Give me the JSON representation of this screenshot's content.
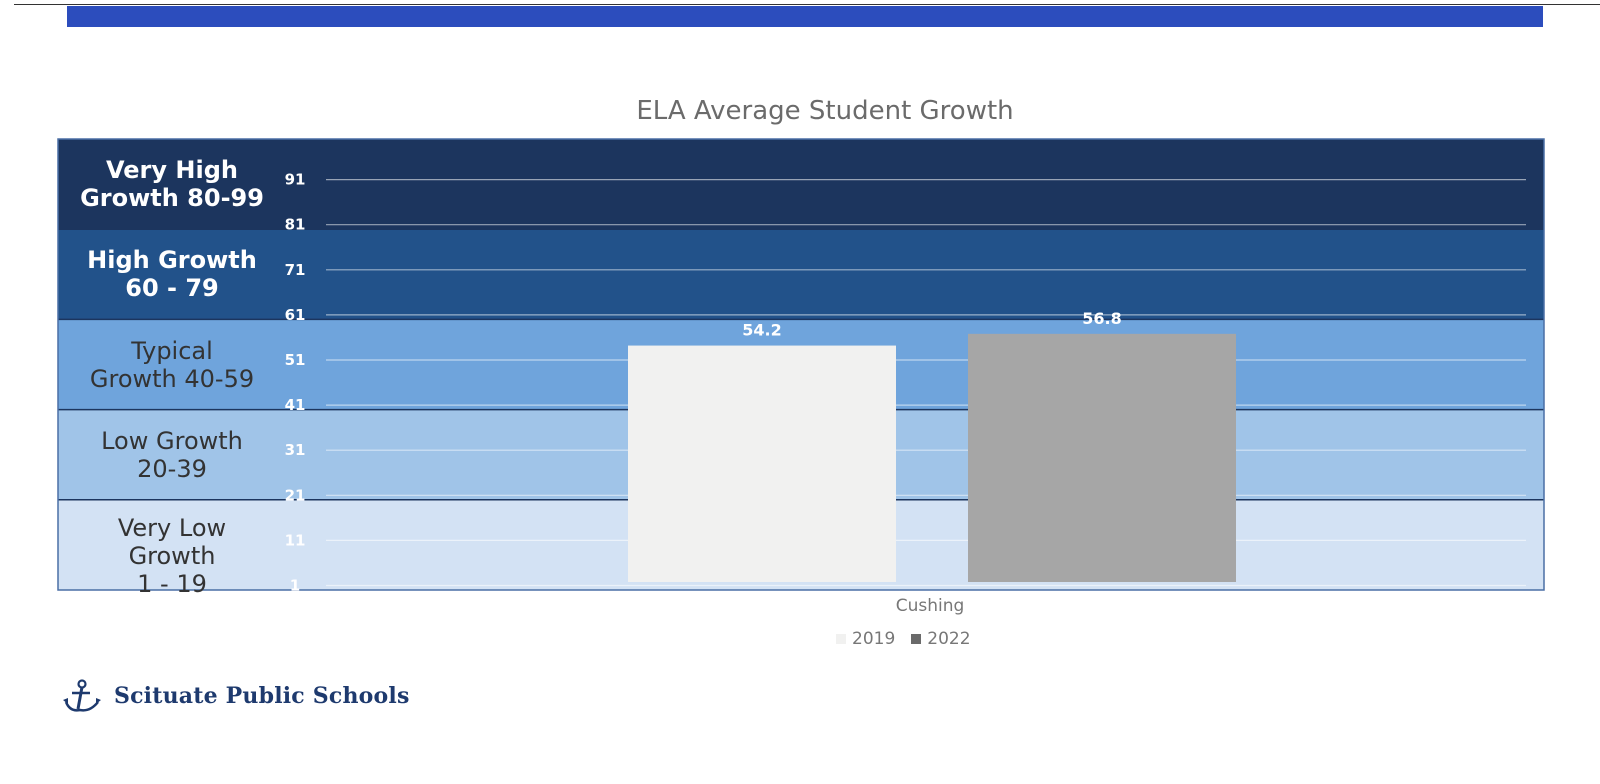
{
  "colors": {
    "top_band": "#2c4dbd",
    "band_very_high": "#1c355e",
    "band_high": "#22528a",
    "band_typical": "#6fa4dc",
    "band_low": "#a0c4e8",
    "band_very_low": "#d3e2f4",
    "bar_2019": "#f1f1f0",
    "bar_2022": "#a6a6a6"
  },
  "bands": [
    {
      "label": "Very High Growth 80-99",
      "lines": [
        "Very High",
        "Growth 80-99"
      ],
      "from": 80,
      "to": 100,
      "style": "dark"
    },
    {
      "label": "High Growth 60 - 79",
      "lines": [
        "High Growth",
        "60 - 79"
      ],
      "from": 60,
      "to": 80,
      "style": "dark"
    },
    {
      "label": "Typical Growth 40-59",
      "lines": [
        "Typical",
        "Growth 40-59"
      ],
      "from": 40,
      "to": 60,
      "style": "light"
    },
    {
      "label": "Low Growth 20-39",
      "lines": [
        "Low Growth",
        "20-39"
      ],
      "from": 20,
      "to": 40,
      "style": "light"
    },
    {
      "label": "Very Low Growth 1 - 19",
      "lines": [
        "Very Low",
        "Growth",
        "1 - 19"
      ],
      "from": 0,
      "to": 20,
      "style": "light"
    }
  ],
  "chart_data": {
    "type": "bar",
    "title": "ELA Average Student Growth",
    "categories": [
      "Cushing"
    ],
    "series": [
      {
        "name": "2019",
        "values": [
          54.2
        ],
        "color": "#f1f1f0"
      },
      {
        "name": "2022",
        "values": [
          56.8
        ],
        "color": "#a6a6a6"
      }
    ],
    "y_ticks": [
      "91",
      "81",
      "71",
      "61",
      "51",
      "41",
      "31",
      "21",
      "11",
      "1"
    ],
    "ylim": [
      0,
      100
    ],
    "grid": true,
    "legend": "bottom",
    "data_labels": [
      "54.2",
      "56.8"
    ]
  },
  "logo": {
    "text": "Scituate Public Schools",
    "icon": "anchor-icon"
  }
}
